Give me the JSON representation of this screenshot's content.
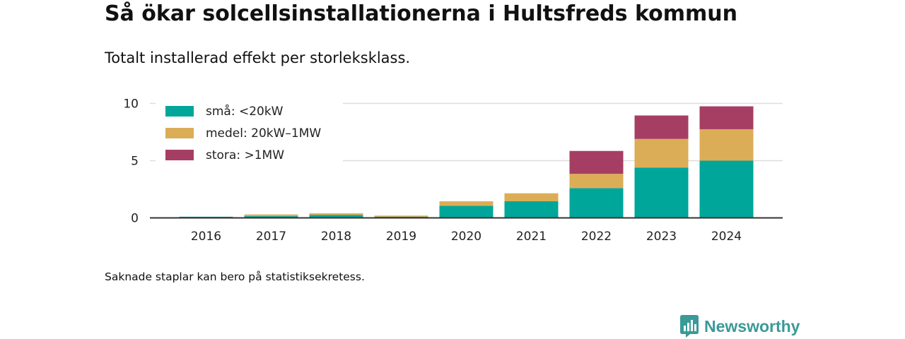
{
  "title": "Så ökar solcellsinstallationerna i Hultsfreds kommun",
  "subtitle": "Totalt installerad effekt per storleksklass.",
  "note": "Saknade staplar kan bero på statistiksekretess.",
  "brand": {
    "name": "Newsworthy",
    "color": "#3a9a98"
  },
  "chart_data": {
    "type": "bar",
    "stacked": true,
    "categories": [
      "2016",
      "2017",
      "2018",
      "2019",
      "2020",
      "2021",
      "2022",
      "2023",
      "2024"
    ],
    "series": [
      {
        "name": "små: <20kW",
        "color": "#00a69a",
        "values": [
          0.1,
          0.15,
          0.25,
          0.1,
          1.05,
          1.45,
          2.6,
          4.4,
          5.0
        ]
      },
      {
        "name": "medel: 20kW–1MW",
        "color": "#dcad57",
        "values": [
          0.0,
          0.15,
          0.15,
          0.1,
          0.4,
          0.7,
          1.25,
          2.5,
          2.75
        ]
      },
      {
        "name": "stora: >1MW",
        "color": "#a63e64",
        "values": [
          0.0,
          0.0,
          0.0,
          0.0,
          0.0,
          0.0,
          2.0,
          2.05,
          2.0
        ]
      }
    ],
    "y_ticks": [
      0,
      5,
      10
    ],
    "ylim": [
      0,
      10
    ],
    "grid": true,
    "legend": "top-left"
  }
}
